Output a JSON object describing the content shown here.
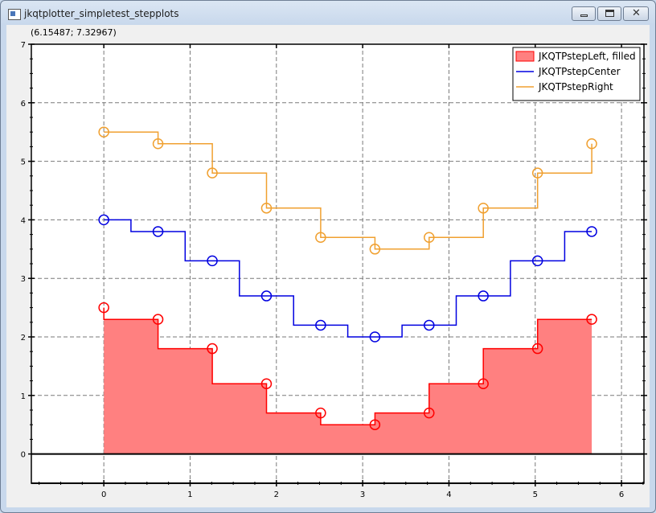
{
  "window": {
    "title": "jkqtplotter_simpletest_stepplots",
    "controls": {
      "minimize": "minimize-icon",
      "maximize": "maximize-icon",
      "close": "close-icon"
    }
  },
  "plot": {
    "coordinate_readout": "(6.15487; 7.32967)"
  },
  "chart_data": {
    "type": "line",
    "step_plot": true,
    "x": [
      0,
      0.628,
      1.257,
      1.885,
      2.513,
      3.142,
      3.77,
      4.398,
      5.027,
      5.655
    ],
    "series": [
      {
        "name": "JKQTPstepLeft, filled",
        "step": "left",
        "filled": true,
        "color": "#ff0000",
        "fill_color": "#ff8080",
        "marker": "circle",
        "values": [
          2.5,
          2.3,
          1.8,
          1.2,
          0.7,
          0.5,
          0.7,
          1.2,
          1.8,
          2.3
        ]
      },
      {
        "name": "JKQTPstepCenter",
        "step": "center",
        "filled": false,
        "color": "#0000e0",
        "marker": "circle",
        "values": [
          4.0,
          3.8,
          3.3,
          2.7,
          2.2,
          2.0,
          2.2,
          2.7,
          3.3,
          3.8
        ]
      },
      {
        "name": "JKQTPstepRight",
        "step": "right",
        "filled": false,
        "color": "#f0a030",
        "marker": "circle",
        "values": [
          5.5,
          5.3,
          4.8,
          4.2,
          3.7,
          3.5,
          3.7,
          4.2,
          4.8,
          5.3
        ]
      }
    ],
    "xlim": [
      -0.84,
      6.26
    ],
    "ylim": [
      -0.5,
      7
    ],
    "xticks": [
      "0",
      "1",
      "2",
      "3",
      "4",
      "5",
      "6"
    ],
    "yticks": [
      "0",
      "1",
      "2",
      "3",
      "4",
      "5",
      "6",
      "7"
    ],
    "grid": true,
    "legend_position": "top-right",
    "xlabel": "",
    "ylabel": "",
    "title": ""
  }
}
